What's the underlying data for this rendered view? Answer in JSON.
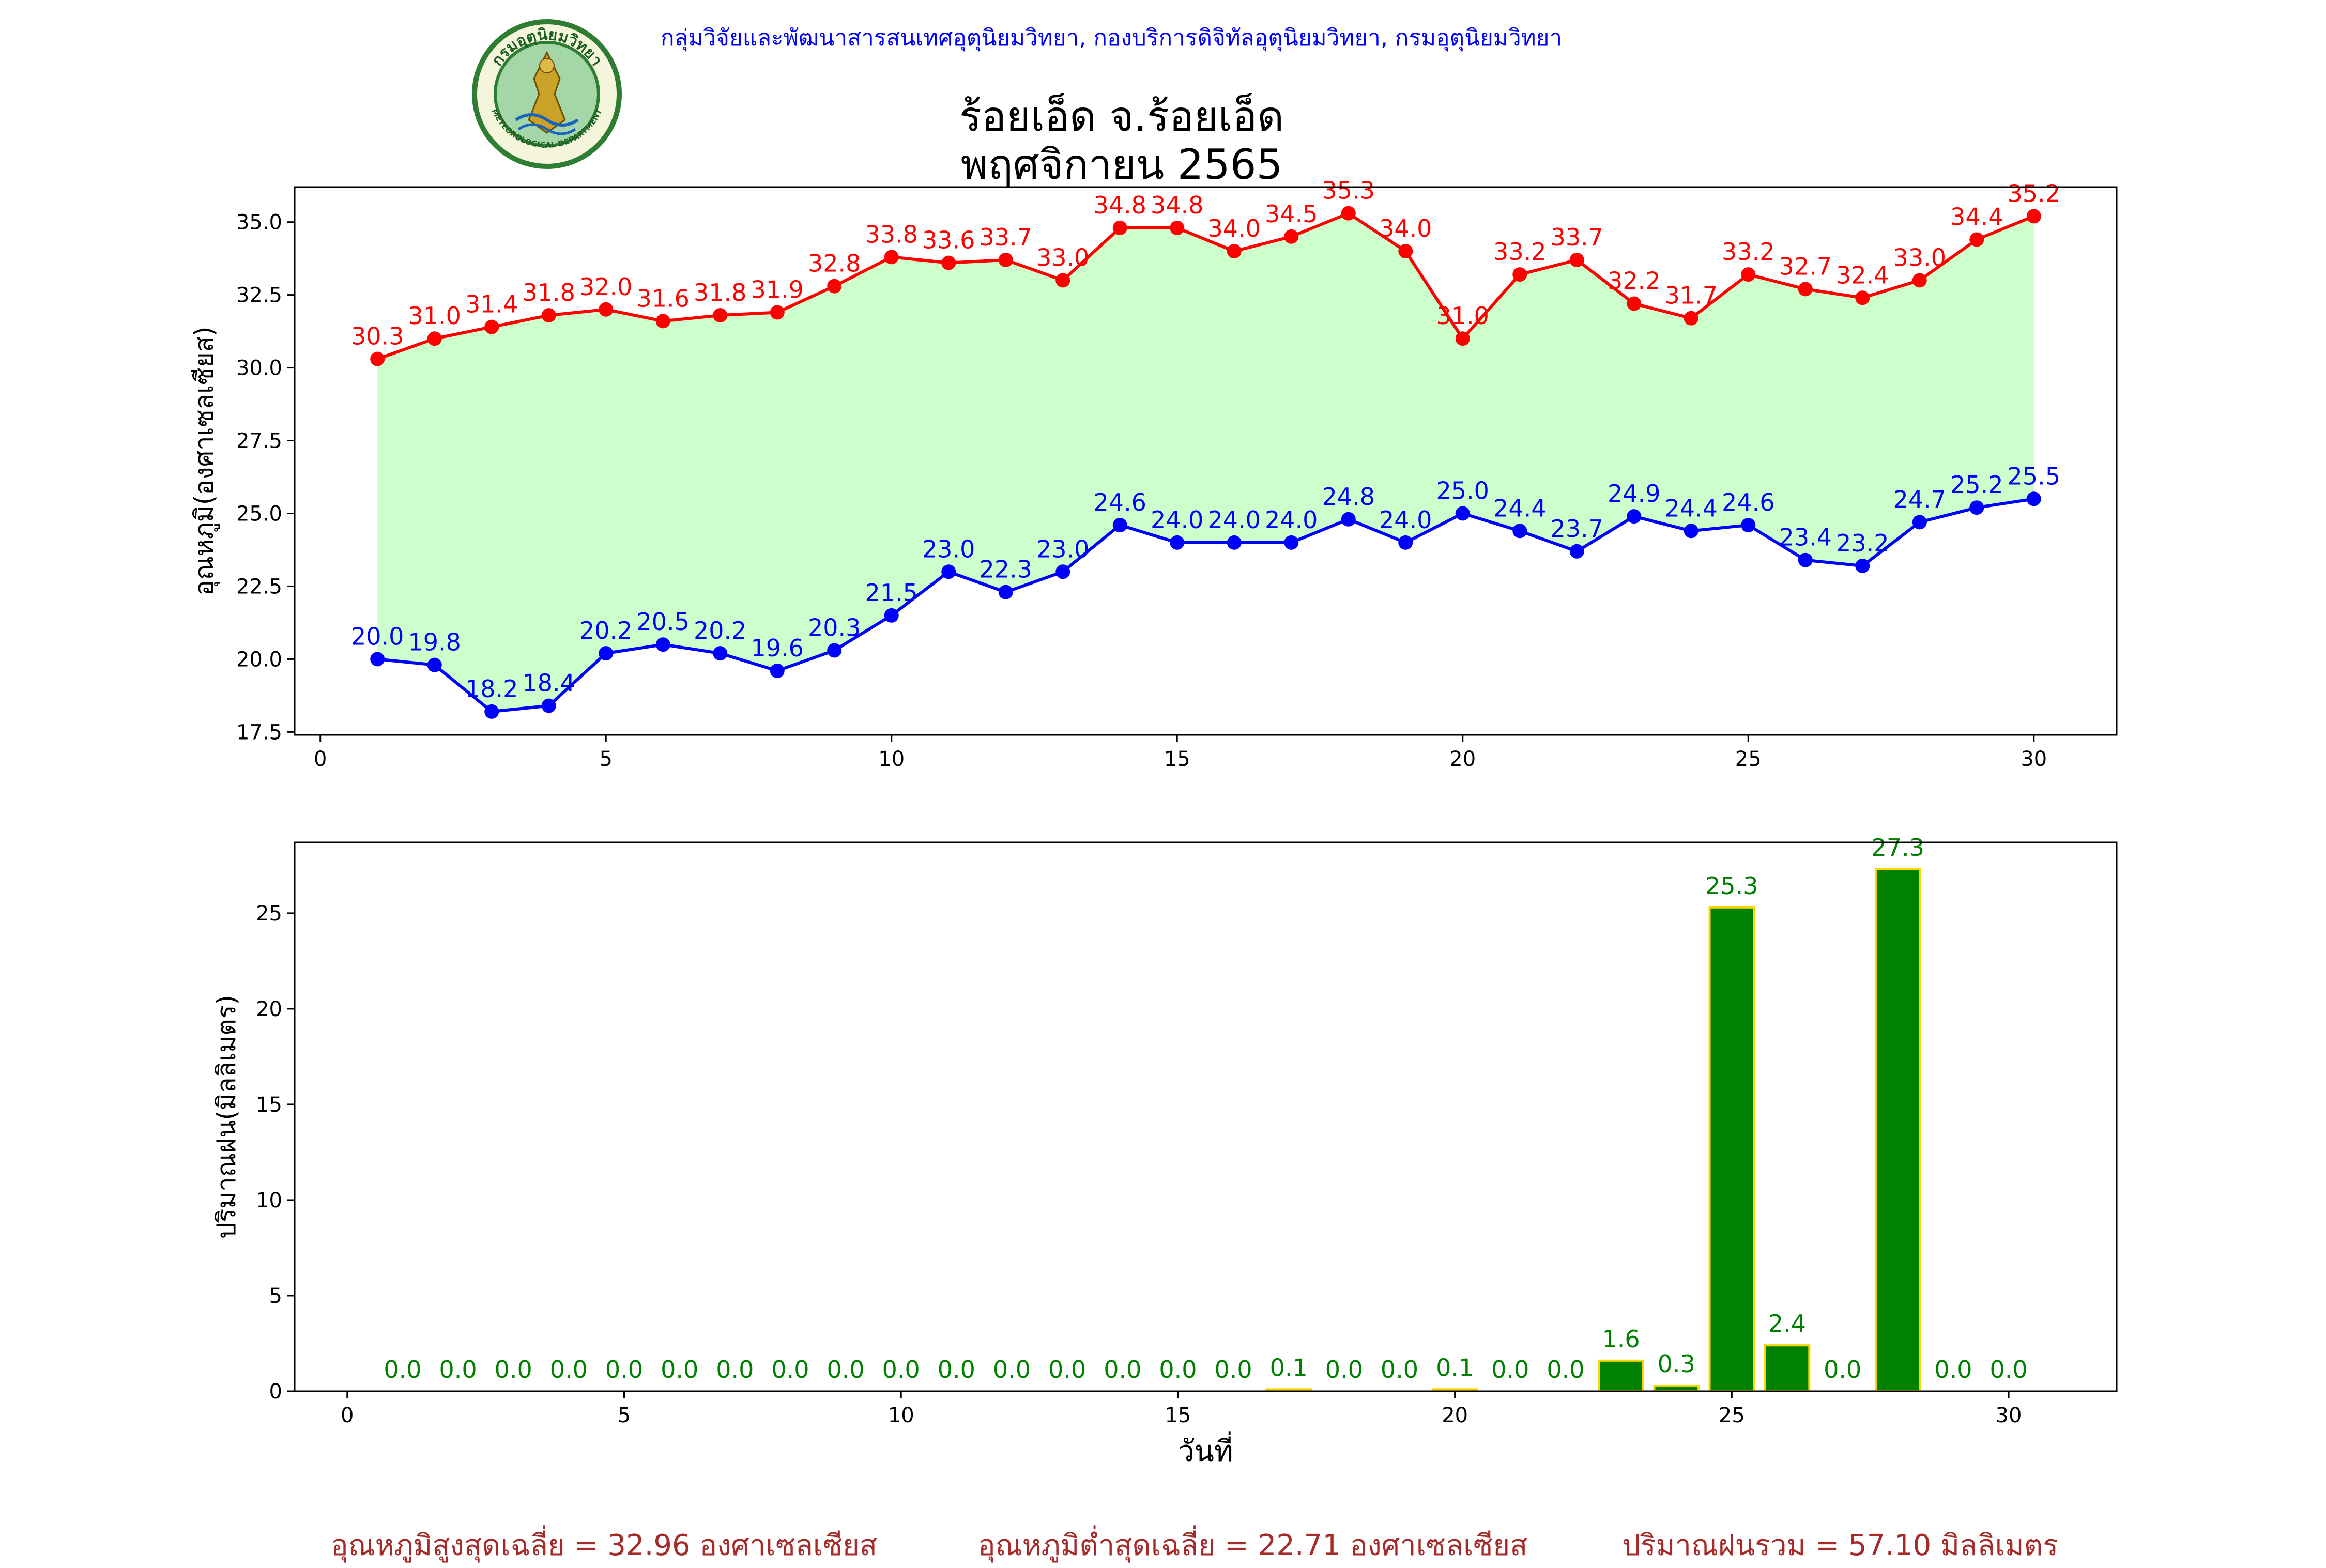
{
  "header": {
    "agency": "กลุ่มวิจัยและพัฒนาสารสนเทศอุตุนิยมวิทยา, กองบริการดิจิทัลอุตุนิยมวิทยา, กรมอุตุนิยมวิทยา",
    "station": "ร้อยเอ็ด จ.ร้อยเอ็ด",
    "month": "พฤศจิกายน 2565",
    "logo_icon": "meteorological-department-seal-icon",
    "logo_text_top": "กรมอุตุนิยมวิทยา",
    "logo_text_bottom": "METEOROLOGICAL DEPARTMENT"
  },
  "summary": {
    "max_avg": "อุณหภูมิสูงสุดเฉลี่ย = 32.96 องศาเซลเซียส",
    "min_avg": "อุณหภูมิต่ำสุดเฉลี่ย = 22.71 องศาเซลเซียส",
    "rain_total": "ปริมาณฝนรวม = 57.10 มิลลิเมตร"
  },
  "colors": {
    "max_line": "#ff0000",
    "min_line": "#0000ff",
    "fill": "#ccffcc",
    "bar_fill": "#008000",
    "bar_edge": "#ffd700",
    "bar_label": "#008000",
    "summary_text": "#a52a2a"
  },
  "chart_data": [
    {
      "type": "line",
      "ylabel": "อุณหภูมิ(องศาเซลเซียส)",
      "xlabel": "",
      "x": [
        1,
        2,
        3,
        4,
        5,
        6,
        7,
        8,
        9,
        10,
        11,
        12,
        13,
        14,
        15,
        16,
        17,
        18,
        19,
        20,
        21,
        22,
        23,
        24,
        25,
        26,
        27,
        28,
        29,
        30
      ],
      "xlim": [
        -0.45,
        31.45
      ],
      "ylim": [
        17.4,
        36.2
      ],
      "xticks": [
        0,
        5,
        10,
        15,
        20,
        25,
        30
      ],
      "yticks": [
        "17.5",
        "20.0",
        "22.5",
        "25.0",
        "27.5",
        "30.0",
        "32.5",
        "35.0"
      ],
      "fill_between": true,
      "series": [
        {
          "key": "max",
          "values": [
            30.3,
            31.0,
            31.4,
            31.8,
            32.0,
            31.6,
            31.8,
            31.9,
            32.8,
            33.8,
            33.6,
            33.7,
            33.0,
            34.8,
            34.8,
            34.0,
            34.5,
            35.3,
            34.0,
            31.0,
            33.2,
            33.7,
            32.2,
            31.7,
            33.2,
            32.7,
            32.4,
            33.0,
            34.4,
            35.2
          ]
        },
        {
          "key": "min",
          "values": [
            20.0,
            19.8,
            18.2,
            18.4,
            20.2,
            20.5,
            20.2,
            19.6,
            20.3,
            21.5,
            23.0,
            22.3,
            23.0,
            24.6,
            24.0,
            24.0,
            24.0,
            24.8,
            24.0,
            25.0,
            24.4,
            23.7,
            24.9,
            24.4,
            24.6,
            23.4,
            23.2,
            24.7,
            25.2,
            25.5
          ]
        }
      ]
    },
    {
      "type": "bar",
      "ylabel": "ปริมาณฝน(มิลลิเมตร)",
      "xlabel": "วันที่",
      "x": [
        1,
        2,
        3,
        4,
        5,
        6,
        7,
        8,
        9,
        10,
        11,
        12,
        13,
        14,
        15,
        16,
        17,
        18,
        19,
        20,
        21,
        22,
        23,
        24,
        25,
        26,
        27,
        28,
        29,
        30
      ],
      "values": [
        0.0,
        0.0,
        0.0,
        0.0,
        0.0,
        0.0,
        0.0,
        0.0,
        0.0,
        0.0,
        0.0,
        0.0,
        0.0,
        0.0,
        0.0,
        0.0,
        0.1,
        0.0,
        0.0,
        0.1,
        0.0,
        0.0,
        1.6,
        0.3,
        25.3,
        2.4,
        0.0,
        27.3,
        0.0,
        0.0
      ],
      "xlim": [
        -0.95,
        31.95
      ],
      "ylim": [
        0,
        28.7
      ],
      "xticks": [
        0,
        5,
        10,
        15,
        20,
        25,
        30
      ],
      "yticks": [
        0,
        5,
        10,
        15,
        20,
        25
      ]
    }
  ]
}
